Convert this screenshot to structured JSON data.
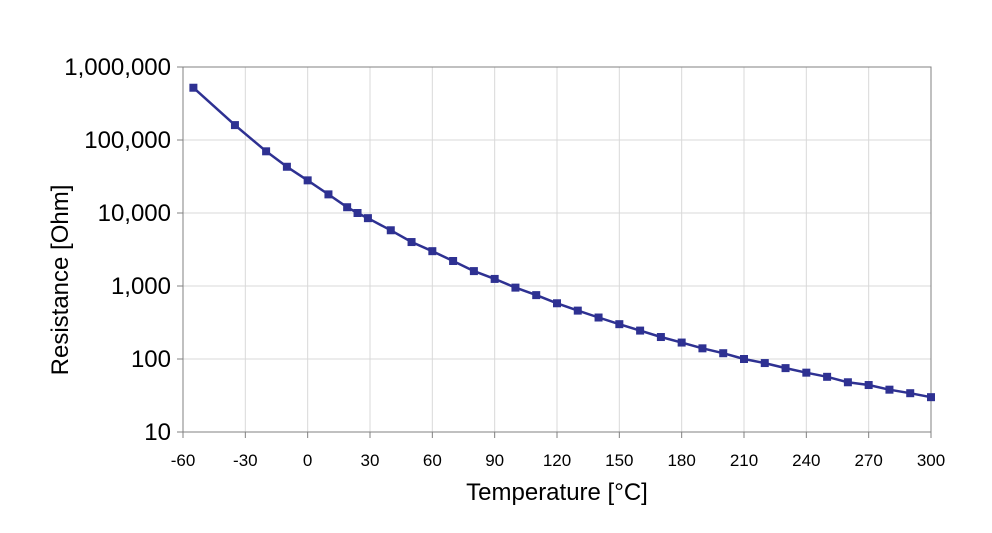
{
  "chart_data": {
    "type": "line",
    "title": "",
    "xlabel": "Temperature [°C]",
    "ylabel": "Resistance [Ohm]",
    "xlim": [
      -60,
      300
    ],
    "ylim": [
      10,
      1000000
    ],
    "y_scale": "log",
    "grid": true,
    "legend": "none",
    "x_ticks": [
      -60,
      -30,
      0,
      30,
      60,
      90,
      120,
      150,
      180,
      210,
      240,
      270,
      300
    ],
    "x_tick_labels": [
      "-60",
      "-30",
      "0",
      "30",
      "60",
      "90",
      "120",
      "150",
      "180",
      "210",
      "240",
      "270",
      "300"
    ],
    "y_ticks": [
      10,
      100,
      1000,
      10000,
      100000,
      1000000
    ],
    "y_tick_labels": [
      "10",
      "100",
      "1,000",
      "10,000",
      "100,000",
      "1,000,000"
    ],
    "series": [
      {
        "color": "#2e3192",
        "marker": "square",
        "x": [
          -55,
          -35,
          -20,
          -10,
          0,
          10,
          19,
          24,
          29,
          40,
          50,
          60,
          70,
          80,
          90,
          100,
          110,
          120,
          130,
          140,
          150,
          160,
          170,
          180,
          190,
          200,
          210,
          220,
          230,
          240,
          250,
          260,
          270,
          280,
          290,
          300
        ],
        "y": [
          520000,
          160000,
          70000,
          43000,
          28000,
          18000,
          12000,
          10000,
          8500,
          5800,
          4000,
          3000,
          2200,
          1600,
          1250,
          950,
          750,
          580,
          460,
          370,
          300,
          245,
          200,
          168,
          140,
          120,
          100,
          88,
          75,
          65,
          57,
          48,
          44,
          38,
          34,
          30
        ]
      }
    ]
  }
}
